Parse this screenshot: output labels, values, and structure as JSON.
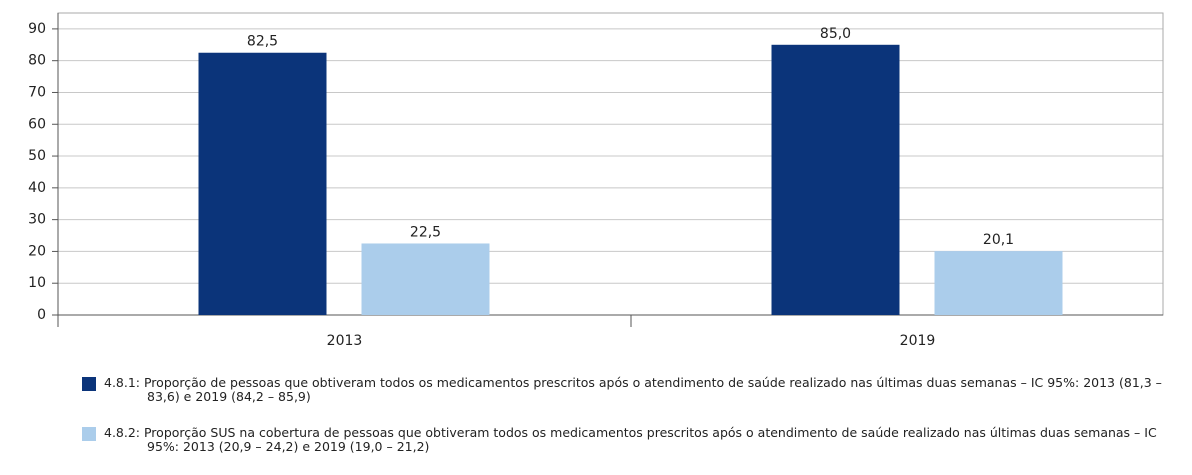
{
  "chart_data": {
    "type": "bar",
    "categories": [
      "2013",
      "2019"
    ],
    "series": [
      {
        "name": "4.8.1: Proporção de pessoas que obtiveram todos os medicamentos prescritos após o atendimento de saúde realizado nas últimas duas semanas – IC 95%: 2013 (81,3 – 83,6) e 2019 (84,2 – 85,9)",
        "color": "#0b347a",
        "values": [
          82.5,
          85.0
        ],
        "value_labels": [
          "82,5",
          "85,0"
        ]
      },
      {
        "name": "4.8.2: Proporção SUS na cobertura de pessoas que obtiveram todos os medicamentos prescritos após o atendimento de saúde realizado nas últimas duas semanas – IC 95%: 2013 (20,9 – 24,2) e 2019 (19,0 – 21,2)",
        "color": "#abcdeb",
        "values": [
          22.5,
          20.1
        ],
        "value_labels": [
          "22,5",
          "20,1"
        ]
      }
    ],
    "ylim": [
      0,
      95
    ],
    "yticks": [
      0,
      10,
      20,
      30,
      40,
      50,
      60,
      70,
      80,
      90
    ],
    "grid": true
  }
}
